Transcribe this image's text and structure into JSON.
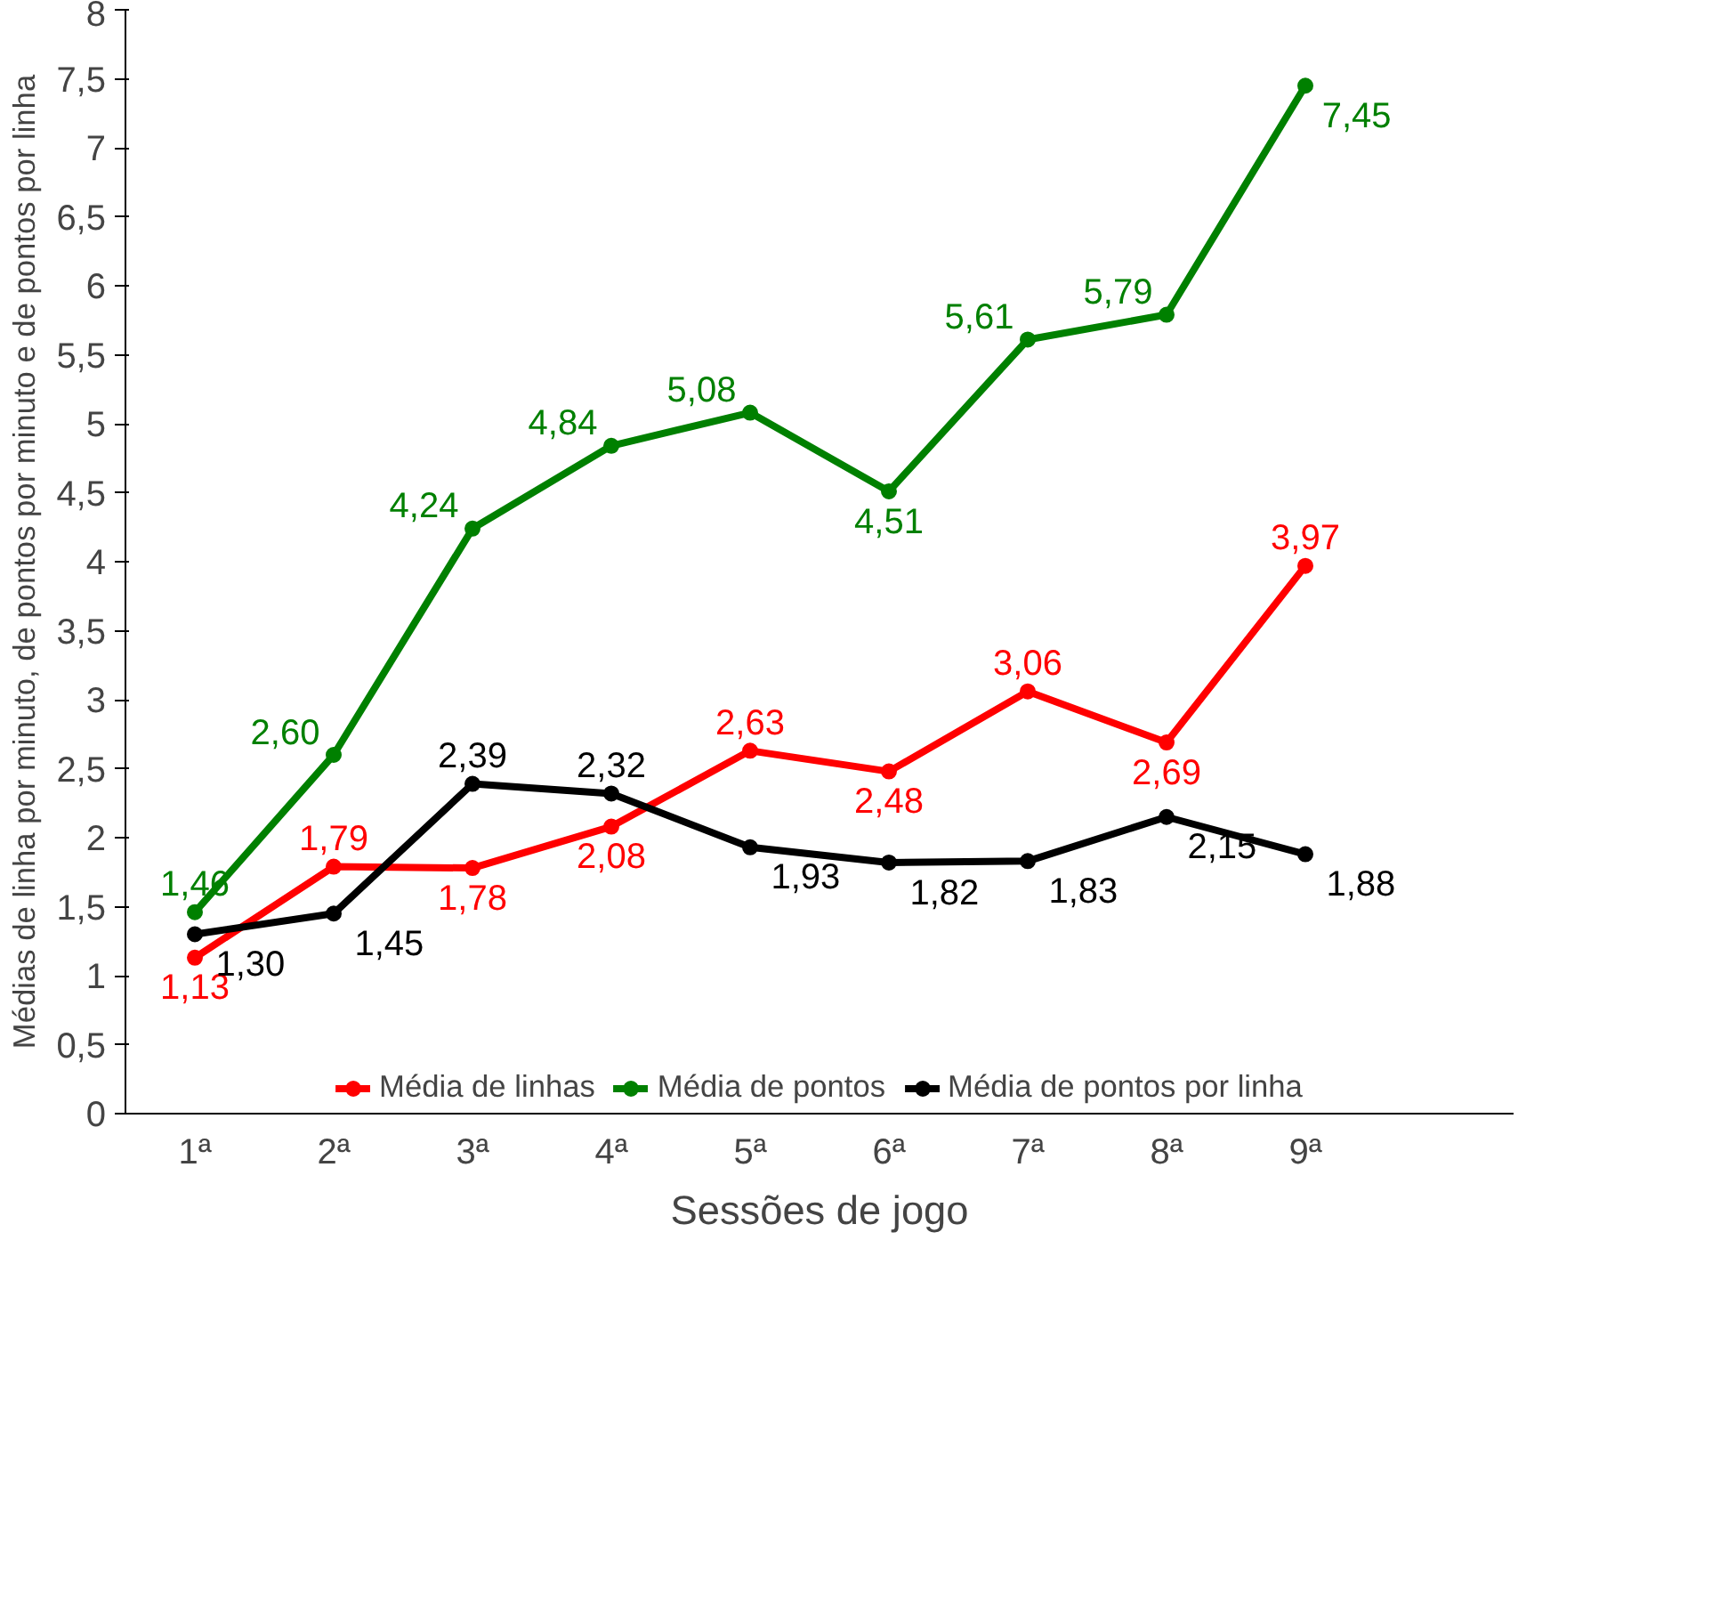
{
  "chart_data": {
    "type": "line",
    "xlabel": "Sessões de jogo",
    "ylabel": "Médias de linha por minuto, de pontos por minuto e de pontos por linha",
    "categories": [
      "1ª",
      "2ª",
      "3ª",
      "4ª",
      "5ª",
      "6ª",
      "7ª",
      "8ª",
      "9ª",
      null
    ],
    "series": [
      {
        "name": "Média de linhas",
        "color": "#ff0000",
        "values": [
          1.13,
          1.79,
          1.78,
          2.08,
          2.63,
          2.48,
          3.06,
          2.69,
          3.97,
          null
        ],
        "value_labels": [
          "1,13",
          "1,79",
          "1,78",
          "2,08",
          "2,63",
          "2,48",
          "3,06",
          "2,69",
          "3,97",
          null
        ]
      },
      {
        "name": "Média de pontos",
        "color": "#008000",
        "values": [
          1.46,
          2.6,
          4.24,
          4.84,
          5.08,
          4.51,
          5.61,
          5.79,
          7.45,
          null
        ],
        "value_labels": [
          "1,46",
          "2,60",
          "4,24",
          "4,84",
          "5,08",
          "4,51",
          "5,61",
          "5,79",
          "7,45",
          null
        ]
      },
      {
        "name": "Média de pontos por linha",
        "color": "#000000",
        "values": [
          1.3,
          1.45,
          2.39,
          2.32,
          1.93,
          1.82,
          1.83,
          2.15,
          1.88,
          null
        ],
        "value_labels": [
          "1,30",
          "1,45",
          "2,39",
          "2,32",
          "1,93",
          "1,82",
          "1,83",
          "2,15",
          "1,88",
          null
        ]
      }
    ],
    "ylim": [
      0,
      8
    ],
    "yticks": [
      0,
      {
        "value": 0.5,
        "label": "0,5"
      },
      1,
      {
        "value": 1.5,
        "label": "1,5"
      },
      2,
      {
        "value": 2.5,
        "label": "2,5"
      },
      3,
      {
        "value": 3.5,
        "label": "3,5"
      },
      4,
      {
        "value": 4.5,
        "label": "4,5"
      },
      5,
      {
        "value": 5.5,
        "label": "5,5"
      },
      6,
      {
        "value": 6.5,
        "label": "6,5"
      },
      7,
      {
        "value": 7.5,
        "label": "7,5"
      },
      8
    ],
    "grid": false,
    "legend": "bottom",
    "marker": "circle",
    "line_style": "solid"
  }
}
